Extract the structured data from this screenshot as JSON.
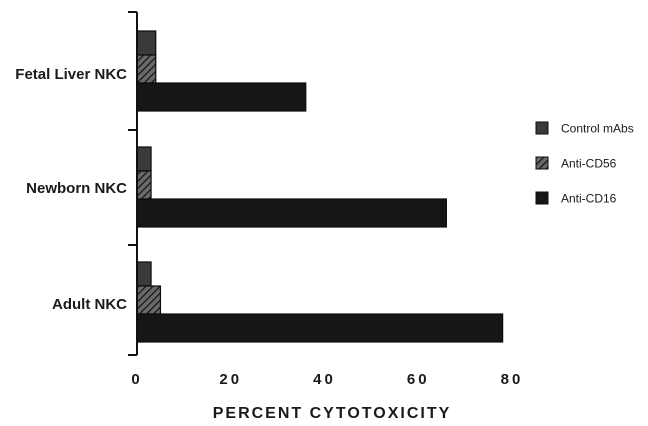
{
  "chart_data": {
    "type": "bar",
    "orientation": "horizontal",
    "categories": [
      "Fetal Liver NKC",
      "Newborn NKC",
      "Adult NKC"
    ],
    "series": [
      {
        "name": "Control mAbs",
        "values": [
          4,
          3,
          3
        ],
        "color": "#3a3a3a",
        "pattern": "solid"
      },
      {
        "name": "Anti-CD56",
        "values": [
          4,
          3,
          5
        ],
        "color": "#2a2a2a",
        "pattern": "hatched"
      },
      {
        "name": "Anti-CD16",
        "values": [
          36,
          66,
          78
        ],
        "color": "#161616",
        "pattern": "solid"
      }
    ],
    "xlabel": "PERCENT CYTOTOXICITY",
    "ylabel": "",
    "xlim": [
      0,
      80
    ],
    "xticks": [
      0,
      20,
      40,
      60,
      80
    ],
    "grid": false,
    "legend_position": "right"
  }
}
